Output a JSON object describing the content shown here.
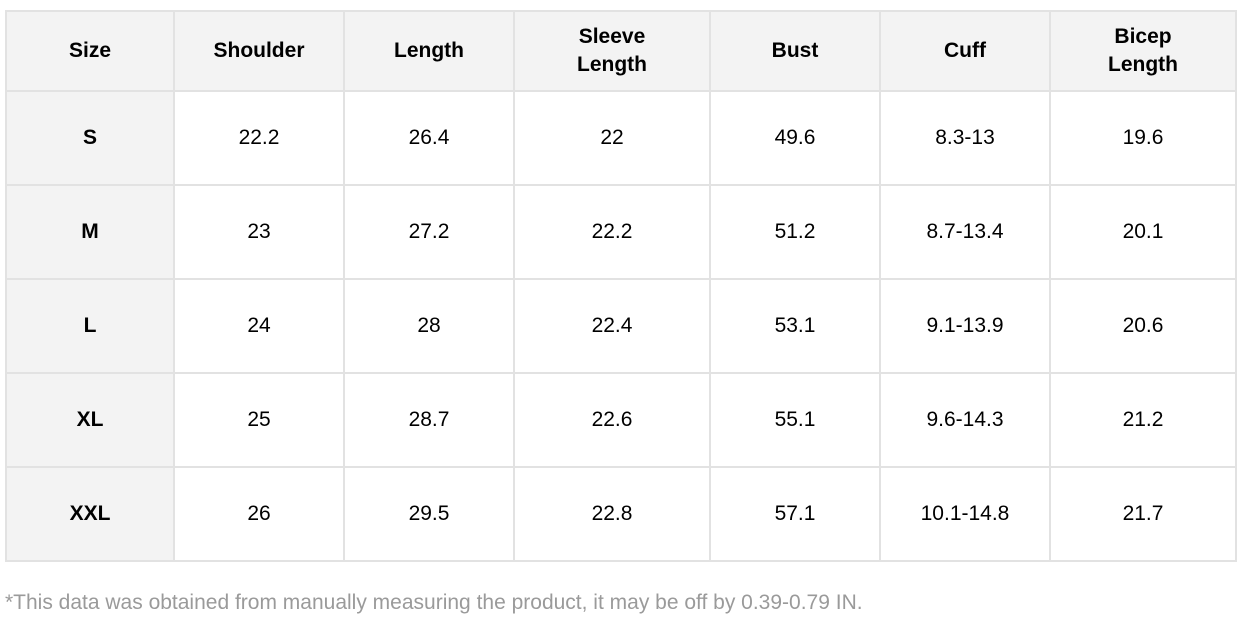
{
  "table": {
    "header": [
      "Size",
      "Shoulder",
      "Length",
      "Sleeve Length",
      "Bust",
      "Cuff",
      "Bicep Length"
    ],
    "rows": [
      [
        "S",
        22.2,
        26.4,
        22,
        49.6,
        "8.3-13",
        19.6
      ],
      [
        "M",
        23,
        27.2,
        22.2,
        51.2,
        "8.7-13.4",
        20.1
      ],
      [
        "L",
        24,
        28,
        22.4,
        53.1,
        "9.1-13.9",
        20.6
      ],
      [
        "XL",
        25,
        28.7,
        22.6,
        55.1,
        "9.6-14.3",
        21.2
      ],
      [
        "XXL",
        26,
        29.5,
        22.8,
        57.1,
        "10.1-14.8",
        21.7
      ]
    ]
  },
  "note": "*This data was obtained from manually measuring the product, it may be off by 0.39-0.79 IN."
}
